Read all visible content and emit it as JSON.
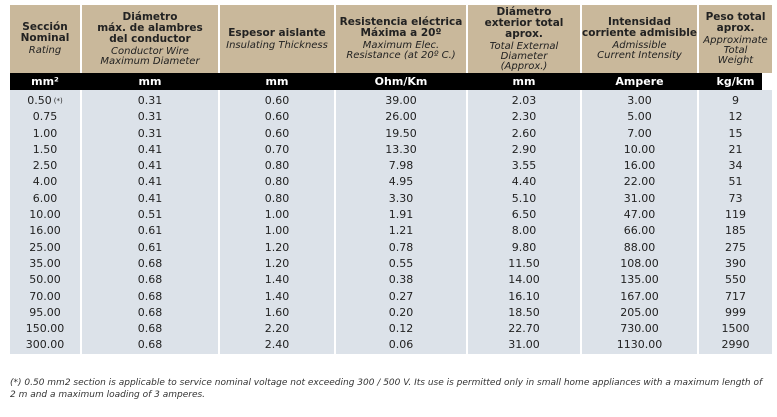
{
  "table": {
    "columns": [
      {
        "title": "Sección\nNominal",
        "subtitle": "Rating",
        "unit": "mm²"
      },
      {
        "title": "Diámetro\nmáx. de alambres\ndel conductor",
        "subtitle": "Conductor Wire\nMaximum Diameter",
        "unit": "mm"
      },
      {
        "title": "Espesor aislante",
        "subtitle": "Insulating Thickness",
        "unit": "mm"
      },
      {
        "title": "Resistencia eléctrica\nMáxima a 20º",
        "subtitle": "Maximum Elec.\nResistance (at 20º C.)",
        "unit": "Ohm/Km"
      },
      {
        "title": "Diámetro\nexterior total\naprox.",
        "subtitle": "Total External\nDiameter\n(Approx.)",
        "unit": "mm"
      },
      {
        "title": "Intensidad\ncorriente admisible",
        "subtitle": "Admissible\nCurrent Intensity",
        "unit": "Ampere"
      },
      {
        "title": "Peso total\naprox.",
        "subtitle": "Approximate\nTotal\nWeight",
        "unit": "kg/km"
      }
    ],
    "first_row_mark": "(*)",
    "rows": [
      [
        "0.50",
        "0.31",
        "0.60",
        "39.00",
        "2.03",
        "3.00",
        "9"
      ],
      [
        "0.75",
        "0.31",
        "0.60",
        "26.00",
        "2.30",
        "5.00",
        "12"
      ],
      [
        "1.00",
        "0.31",
        "0.60",
        "19.50",
        "2.60",
        "7.00",
        "15"
      ],
      [
        "1.50",
        "0.41",
        "0.70",
        "13.30",
        "2.90",
        "10.00",
        "21"
      ],
      [
        "2.50",
        "0.41",
        "0.80",
        "7.98",
        "3.55",
        "16.00",
        "34"
      ],
      [
        "4.00",
        "0.41",
        "0.80",
        "4.95",
        "4.40",
        "22.00",
        "51"
      ],
      [
        "6.00",
        "0.41",
        "0.80",
        "3.30",
        "5.10",
        "31.00",
        "73"
      ],
      [
        "10.00",
        "0.51",
        "1.00",
        "1.91",
        "6.50",
        "47.00",
        "119"
      ],
      [
        "16.00",
        "0.61",
        "1.00",
        "1.21",
        "8.00",
        "66.00",
        "185"
      ],
      [
        "25.00",
        "0.61",
        "1.20",
        "0.78",
        "9.80",
        "88.00",
        "275"
      ],
      [
        "35.00",
        "0.68",
        "1.20",
        "0.55",
        "11.50",
        "108.00",
        "390"
      ],
      [
        "50.00",
        "0.68",
        "1.40",
        "0.38",
        "14.00",
        "135.00",
        "550"
      ],
      [
        "70.00",
        "0.68",
        "1.40",
        "0.27",
        "16.10",
        "167.00",
        "717"
      ],
      [
        "95.00",
        "0.68",
        "1.60",
        "0.20",
        "18.50",
        "205.00",
        "999"
      ],
      [
        "150.00",
        "0.68",
        "2.20",
        "0.12",
        "22.70",
        "730.00",
        "1500"
      ],
      [
        "300.00",
        "0.68",
        "2.40",
        "0.06",
        "31.00",
        "1130.00",
        "2990"
      ]
    ],
    "footnote": "(*) 0.50 mm2 section is applicable to service nominal voltage not exceeding 300 / 500 V. Its use is permitted only in small home appliances with a maximum length of 2 m and a maximum loading of 3 amperes."
  }
}
